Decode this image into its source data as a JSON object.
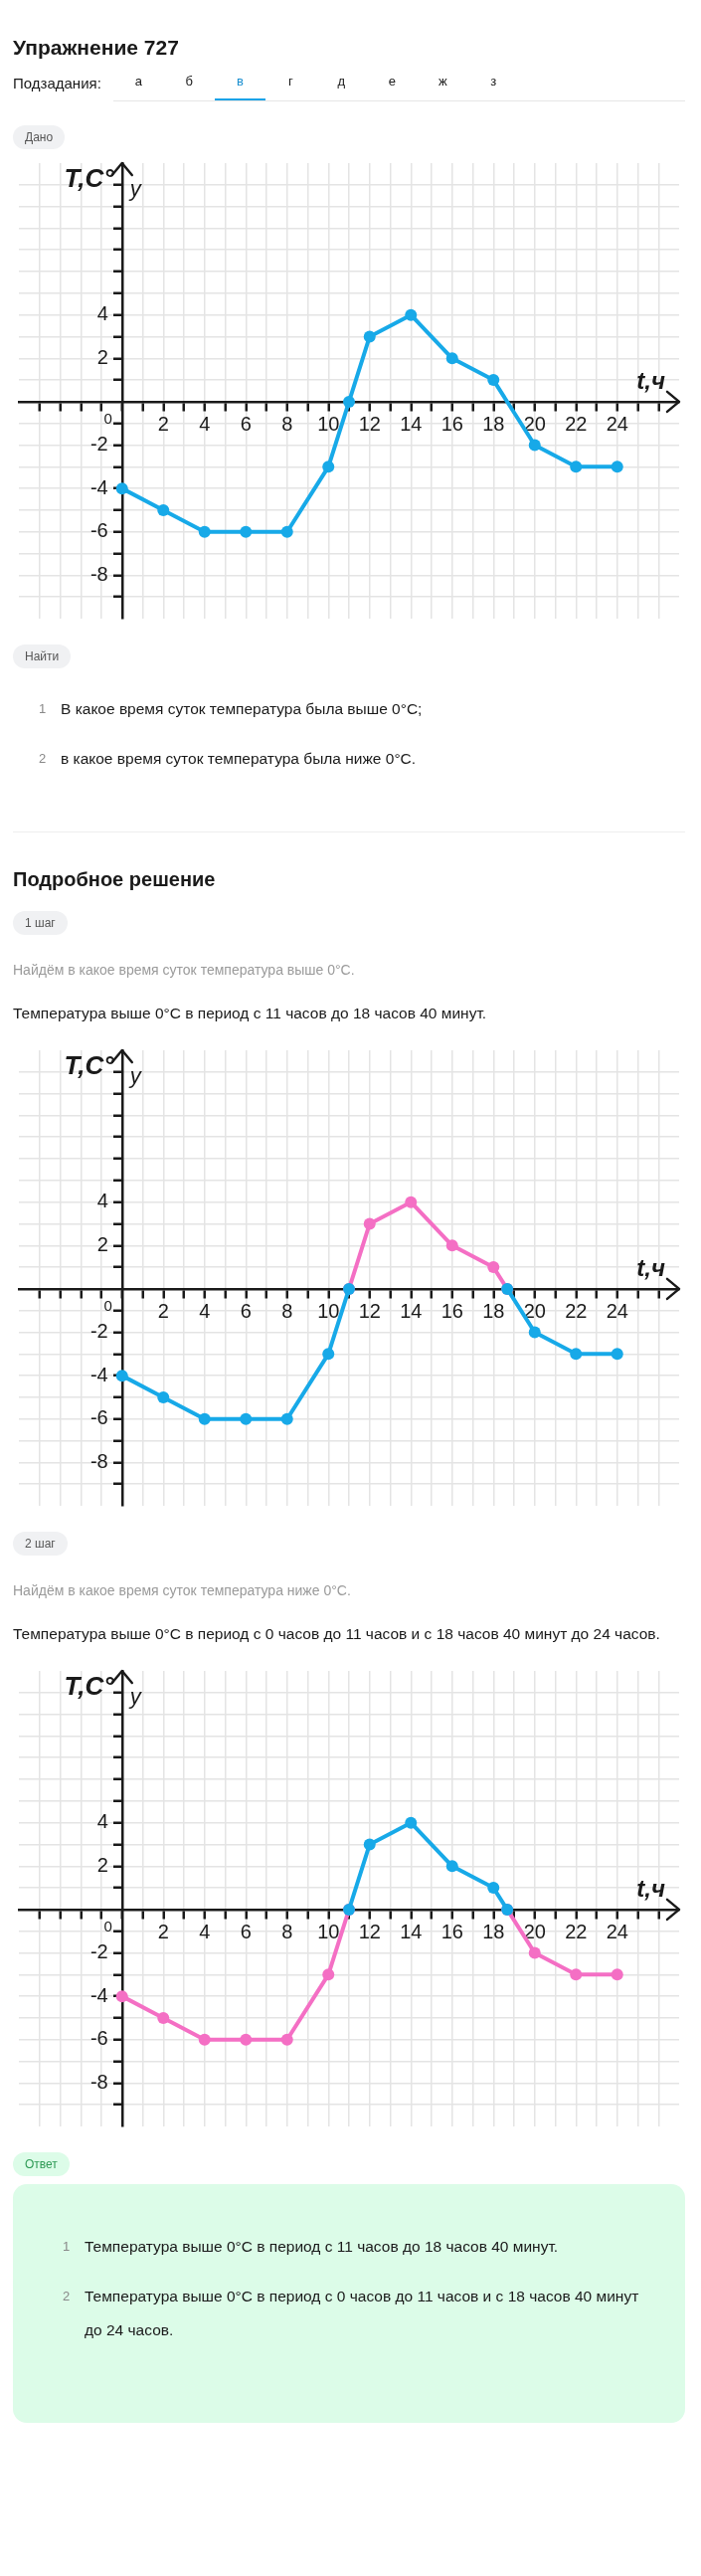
{
  "chart_data": [
    {
      "type": "other",
      "title": "Упражнение 727",
      "annotations": [
        "Подзадания:",
        "а",
        "б",
        "в",
        "г",
        "д",
        "е",
        "ж",
        "з"
      ]
    },
    {
      "type": "line",
      "subtitle": "Дано",
      "xlabel": "t,ч",
      "ylabel": "T,C°",
      "annotations": [
        "y",
        "0"
      ],
      "xlim": [
        -5,
        27
      ],
      "ylim": [
        -10,
        11
      ],
      "grid": true,
      "marker": "circle",
      "xticks": [
        {
          "value": -4,
          "label": null
        },
        {
          "value": -3,
          "label": null
        },
        {
          "value": -2,
          "label": null
        },
        {
          "value": -1,
          "label": null
        },
        {
          "value": 0,
          "label": null
        },
        {
          "value": 1,
          "label": null
        },
        2,
        {
          "value": 3,
          "label": null
        },
        4,
        {
          "value": 5,
          "label": null
        },
        6,
        {
          "value": 7,
          "label": null
        },
        8,
        {
          "value": 9,
          "label": null
        },
        10,
        {
          "value": 11,
          "label": null
        },
        12,
        {
          "value": 13,
          "label": null
        },
        14,
        {
          "value": 15,
          "label": null
        },
        16,
        {
          "value": 17,
          "label": null
        },
        18,
        {
          "value": 19,
          "label": null
        },
        20,
        {
          "value": 21,
          "label": null
        },
        22,
        {
          "value": 23,
          "label": null
        },
        24,
        {
          "value": 25,
          "label": null
        },
        {
          "value": 26,
          "label": null
        }
      ],
      "yticks": [
        {
          "value": -9,
          "label": null
        },
        -8,
        {
          "value": -7,
          "label": null
        },
        -6,
        {
          "value": -5,
          "label": null
        },
        -4,
        {
          "value": -3,
          "label": null
        },
        -2,
        {
          "value": -1,
          "label": null
        },
        {
          "value": 1,
          "label": null
        },
        2,
        {
          "value": 3,
          "label": null
        },
        4,
        {
          "value": 5,
          "label": null
        },
        {
          "value": 6,
          "label": null
        },
        {
          "value": 7,
          "label": null
        },
        {
          "value": 8,
          "label": null
        },
        {
          "value": 9,
          "label": null
        },
        {
          "value": 10,
          "label": null
        }
      ],
      "series": [
        {
          "color": "#17a9e8",
          "x": [
            0,
            2,
            4,
            6,
            8,
            10,
            11,
            12,
            14,
            16,
            18,
            20,
            22,
            24
          ],
          "values": [
            -4,
            -5,
            -6,
            -6,
            -6,
            -3,
            0,
            3,
            4,
            2,
            1,
            -2,
            -3,
            -3
          ]
        }
      ]
    },
    {
      "type": "other",
      "subtitle": "Найти",
      "annotations": [
        "1",
        "В какое время суток температура была выше 0°C;",
        "2",
        "в какое время суток температура была ниже 0°C."
      ]
    },
    {
      "type": "other",
      "title": "Подробное решение",
      "subtitle": "1 шаг",
      "annotations": [
        "Найдём в какое время суток температура выше 0°C.",
        "Температура выше 0°C в период с 11 часов до 18 часов 40 минут."
      ]
    },
    {
      "type": "line",
      "xlabel": "t,ч",
      "ylabel": "T,C°",
      "annotations": [
        "y",
        "0"
      ],
      "xlim": [
        -5,
        27
      ],
      "ylim": [
        -10,
        11
      ],
      "grid": true,
      "marker": "circle",
      "xticks": [
        {
          "value": -4,
          "label": null
        },
        {
          "value": -3,
          "label": null
        },
        {
          "value": -2,
          "label": null
        },
        {
          "value": -1,
          "label": null
        },
        {
          "value": 0,
          "label": null
        },
        {
          "value": 1,
          "label": null
        },
        2,
        {
          "value": 3,
          "label": null
        },
        4,
        {
          "value": 5,
          "label": null
        },
        6,
        {
          "value": 7,
          "label": null
        },
        8,
        {
          "value": 9,
          "label": null
        },
        10,
        {
          "value": 11,
          "label": null
        },
        12,
        {
          "value": 13,
          "label": null
        },
        14,
        {
          "value": 15,
          "label": null
        },
        16,
        {
          "value": 17,
          "label": null
        },
        18,
        {
          "value": 19,
          "label": null
        },
        20,
        {
          "value": 21,
          "label": null
        },
        22,
        {
          "value": 23,
          "label": null
        },
        24,
        {
          "value": 25,
          "label": null
        },
        {
          "value": 26,
          "label": null
        }
      ],
      "yticks": [
        {
          "value": -9,
          "label": null
        },
        -8,
        {
          "value": -7,
          "label": null
        },
        -6,
        {
          "value": -5,
          "label": null
        },
        -4,
        {
          "value": -3,
          "label": null
        },
        -2,
        {
          "value": -1,
          "label": null
        },
        {
          "value": 1,
          "label": null
        },
        2,
        {
          "value": 3,
          "label": null
        },
        4,
        {
          "value": 5,
          "label": null
        },
        {
          "value": 6,
          "label": null
        },
        {
          "value": 7,
          "label": null
        },
        {
          "value": 8,
          "label": null
        },
        {
          "value": 9,
          "label": null
        },
        {
          "value": 10,
          "label": null
        }
      ],
      "series": [
        {
          "color": "#17a9e8",
          "x": [
            0,
            2,
            4,
            6,
            8,
            10,
            11
          ],
          "values": [
            -4,
            -5,
            -6,
            -6,
            -6,
            -3,
            0
          ]
        },
        {
          "color": "#17a9e8",
          "x": [
            18.67,
            20,
            22,
            24
          ],
          "values": [
            0,
            -2,
            -3,
            -3
          ]
        },
        {
          "color": "#f46fc4",
          "x": [
            11,
            12,
            14,
            16,
            18,
            18.67
          ],
          "values": [
            0,
            3,
            4,
            2,
            1,
            0
          ]
        }
      ]
    },
    {
      "type": "other",
      "subtitle": "2 шаг",
      "annotations": [
        "Найдём в какое время суток температура ниже 0°C.",
        "Температура выше 0°C в период с 0 часов до 11 часов и с 18 часов 40 минут до 24 часов."
      ]
    },
    {
      "type": "line",
      "xlabel": "t,ч",
      "ylabel": "T,C°",
      "annotations": [
        "y",
        "0"
      ],
      "xlim": [
        -5,
        27
      ],
      "ylim": [
        -10,
        11
      ],
      "grid": true,
      "marker": "circle",
      "xticks": [
        {
          "value": -4,
          "label": null
        },
        {
          "value": -3,
          "label": null
        },
        {
          "value": -2,
          "label": null
        },
        {
          "value": -1,
          "label": null
        },
        {
          "value": 0,
          "label": null
        },
        {
          "value": 1,
          "label": null
        },
        2,
        {
          "value": 3,
          "label": null
        },
        4,
        {
          "value": 5,
          "label": null
        },
        6,
        {
          "value": 7,
          "label": null
        },
        8,
        {
          "value": 9,
          "label": null
        },
        10,
        {
          "value": 11,
          "label": null
        },
        12,
        {
          "value": 13,
          "label": null
        },
        14,
        {
          "value": 15,
          "label": null
        },
        16,
        {
          "value": 17,
          "label": null
        },
        18,
        {
          "value": 19,
          "label": null
        },
        20,
        {
          "value": 21,
          "label": null
        },
        22,
        {
          "value": 23,
          "label": null
        },
        24,
        {
          "value": 25,
          "label": null
        },
        {
          "value": 26,
          "label": null
        }
      ],
      "yticks": [
        {
          "value": -9,
          "label": null
        },
        -8,
        {
          "value": -7,
          "label": null
        },
        -6,
        {
          "value": -5,
          "label": null
        },
        -4,
        {
          "value": -3,
          "label": null
        },
        -2,
        {
          "value": -1,
          "label": null
        },
        {
          "value": 1,
          "label": null
        },
        2,
        {
          "value": 3,
          "label": null
        },
        4,
        {
          "value": 5,
          "label": null
        },
        {
          "value": 6,
          "label": null
        },
        {
          "value": 7,
          "label": null
        },
        {
          "value": 8,
          "label": null
        },
        {
          "value": 9,
          "label": null
        },
        {
          "value": 10,
          "label": null
        }
      ],
      "series": [
        {
          "color": "#17a9e8",
          "x": [
            11,
            12,
            14,
            16,
            18,
            18.67
          ],
          "values": [
            0,
            3,
            4,
            2,
            1,
            0
          ]
        },
        {
          "color": "#f46fc4",
          "x": [
            0,
            2,
            4,
            6,
            8,
            10,
            11
          ],
          "values": [
            -4,
            -5,
            -6,
            -6,
            -6,
            -3,
            0
          ]
        },
        {
          "color": "#f46fc4",
          "x": [
            18.67,
            20,
            22,
            24
          ],
          "values": [
            0,
            -2,
            -3,
            -3
          ]
        }
      ]
    },
    {
      "type": "other",
      "subtitle": "Ответ",
      "annotations": [
        "1",
        "Температура выше 0°C в период с 11 часов до 18 часов 40 минут.",
        "2",
        "Температура выше 0°C в период с 0 часов до 11 часов и с 18 часов 40 минут до 24 часов."
      ]
    }
  ]
}
